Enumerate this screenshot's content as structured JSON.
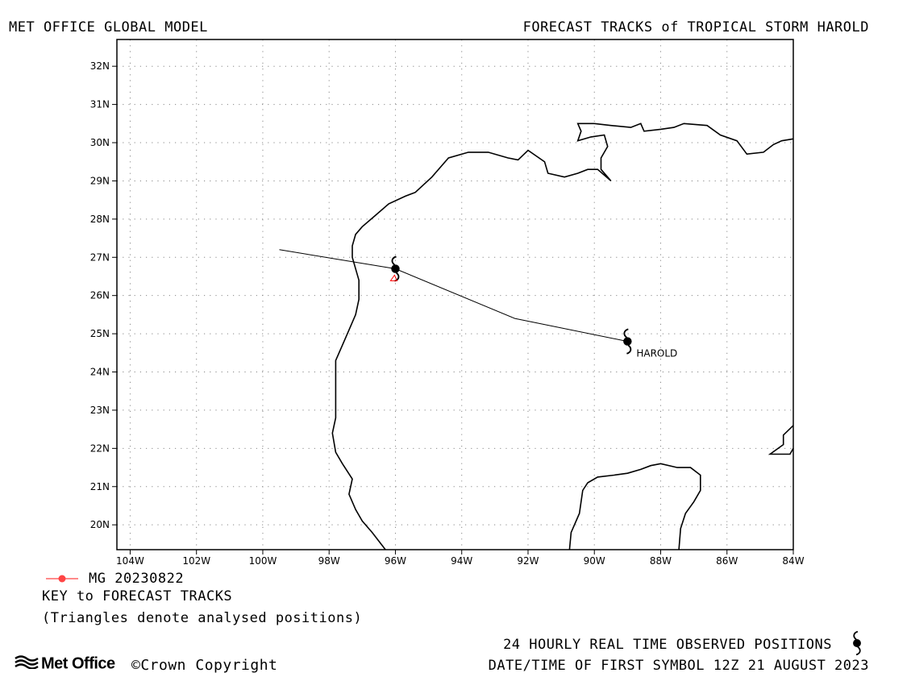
{
  "header": {
    "left_title": "MET OFFICE GLOBAL MODEL",
    "right_title": "FORECAST TRACKS of TROPICAL STORM HAROLD"
  },
  "map": {
    "lat_ticks": [
      "32N",
      "31N",
      "30N",
      "29N",
      "28N",
      "27N",
      "26N",
      "25N",
      "24N",
      "23N",
      "22N",
      "21N",
      "20N"
    ],
    "lon_ticks": [
      "104W",
      "102W",
      "100W",
      "98W",
      "96W",
      "94W",
      "92W",
      "90W",
      "88W",
      "86W",
      "84W"
    ],
    "lon_range": [
      -104.4,
      -84
    ],
    "lat_range": [
      19.35,
      32.7
    ],
    "grid": "dotted",
    "storm_label": "HAROLD",
    "track_color": "#000000",
    "analysed_triangle_color": "#ff0000",
    "coast_color": "#000000"
  },
  "chart_data": {
    "type": "map-track",
    "forecast_track_MG_20230822": [
      {
        "lon": -99.5,
        "lat": 27.2
      },
      {
        "lon": -96.0,
        "lat": 26.7
      },
      {
        "lon": -92.4,
        "lat": 25.4
      },
      {
        "lon": -89.0,
        "lat": 24.8
      }
    ],
    "observed_positions_24h": [
      {
        "lon": -89.0,
        "lat": 24.8,
        "label": "HAROLD"
      },
      {
        "lon": -96.0,
        "lat": 26.7
      }
    ],
    "analysed_position_triangle": {
      "lon": -96.05,
      "lat": 26.45
    }
  },
  "legend": {
    "series_label": "MG 20230822",
    "series_color": "#ff4444",
    "key_title": "KEY to FORECAST TRACKS",
    "key_note": "(Triangles denote analysed positions)"
  },
  "footer": {
    "brand": "Met Office",
    "copyright": "©Crown Copyright",
    "observed_note": "24 HOURLY REAL TIME OBSERVED POSITIONS",
    "datetime_note": "DATE/TIME OF FIRST SYMBOL 12Z 21 AUGUST 2023"
  }
}
